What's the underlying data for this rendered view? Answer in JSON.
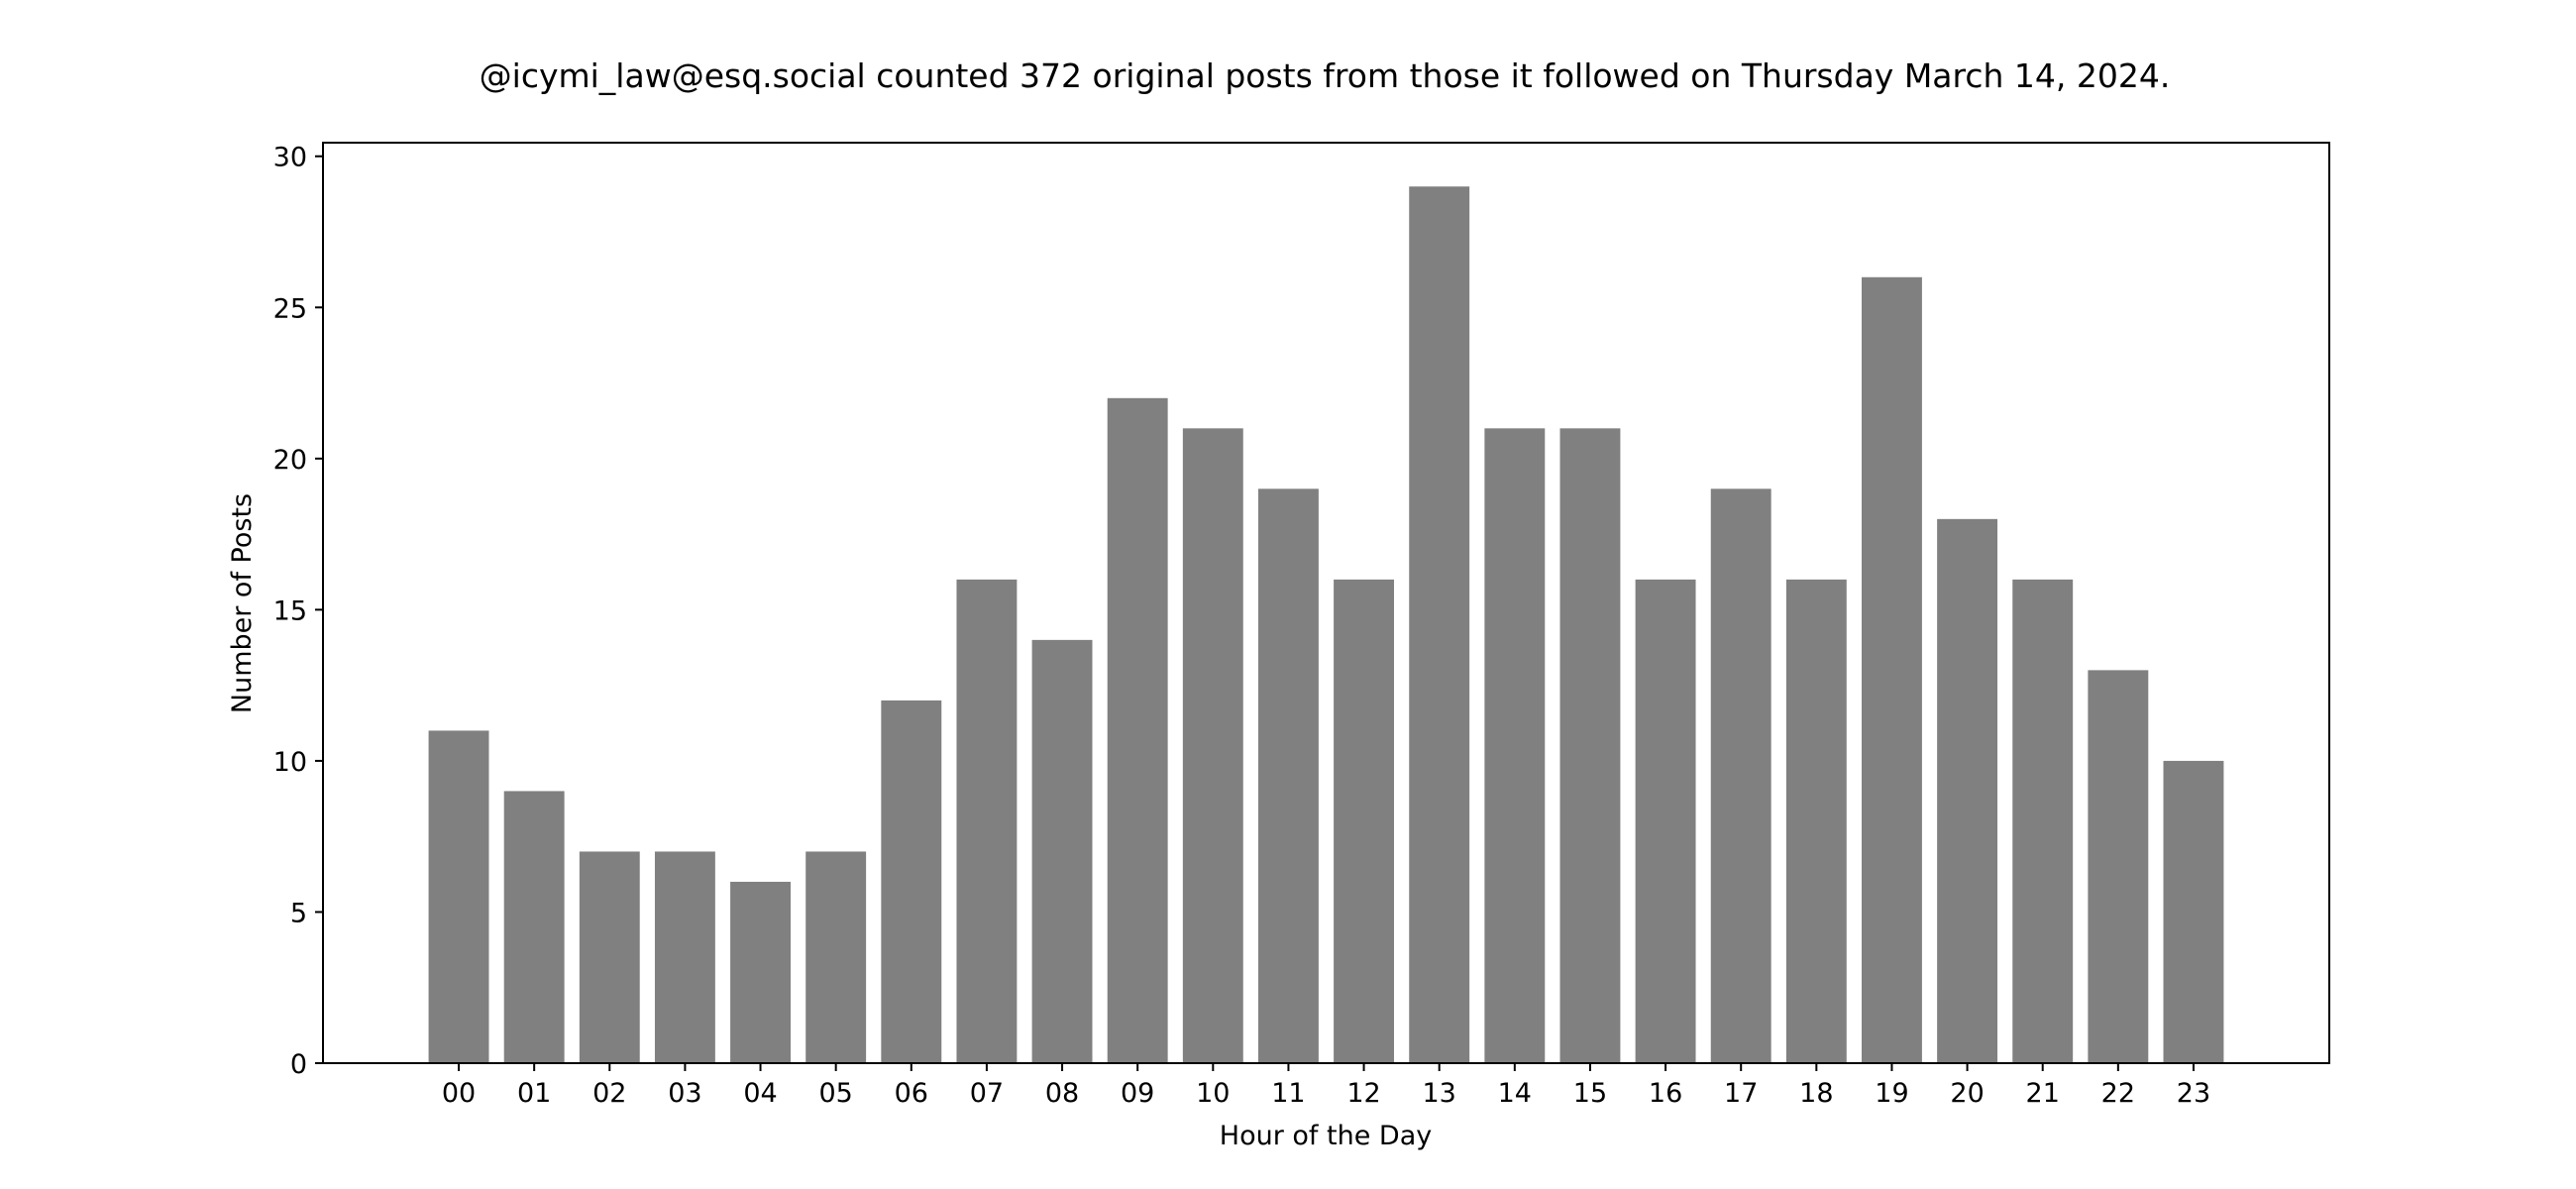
{
  "chart_data": {
    "type": "bar",
    "title": "@icymi_law@esq.social counted 372 original posts from those it followed on Thursday March 14, 2024.",
    "xlabel": "Hour of the Day",
    "ylabel": "Number of Posts",
    "categories": [
      "00",
      "01",
      "02",
      "03",
      "04",
      "05",
      "06",
      "07",
      "08",
      "09",
      "10",
      "11",
      "12",
      "13",
      "14",
      "15",
      "16",
      "17",
      "18",
      "19",
      "20",
      "21",
      "22",
      "23"
    ],
    "values": [
      11,
      9,
      7,
      7,
      6,
      7,
      12,
      16,
      14,
      22,
      21,
      19,
      16,
      29,
      21,
      21,
      16,
      19,
      16,
      26,
      18,
      16,
      13,
      10
    ],
    "ylim": [
      0,
      30.45
    ],
    "yticks": [
      0,
      5,
      10,
      15,
      20,
      25,
      30
    ],
    "bar_color": "#808080",
    "grid": false,
    "legend": "none"
  }
}
